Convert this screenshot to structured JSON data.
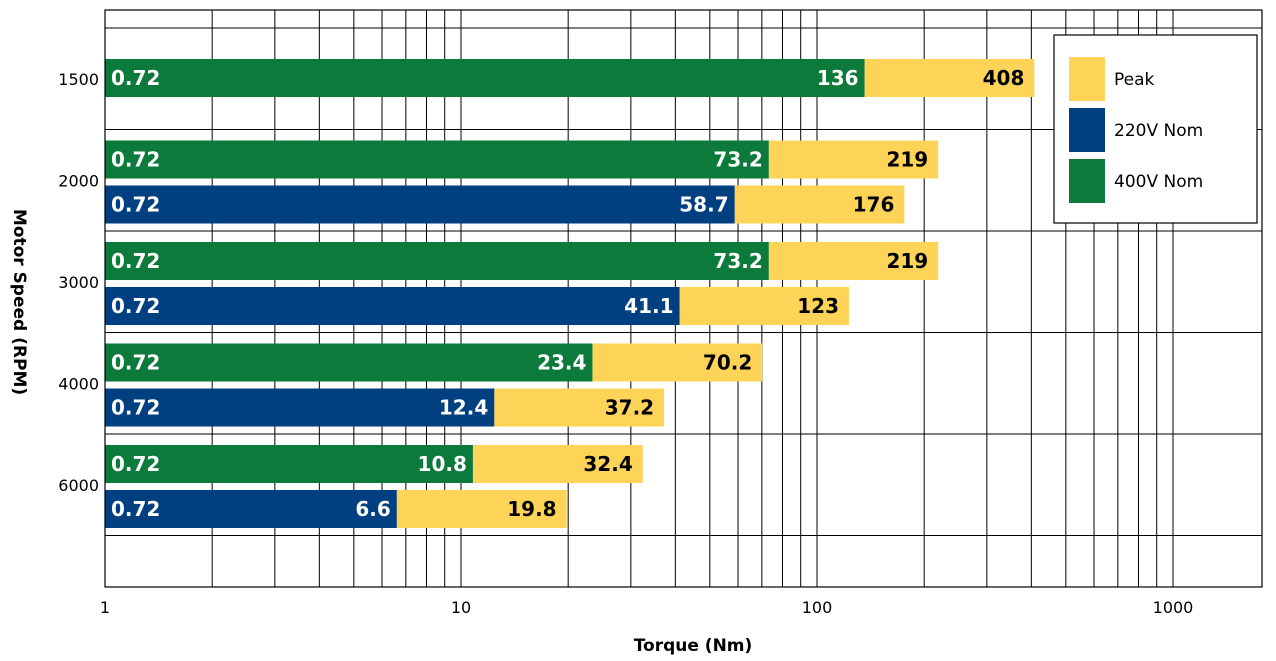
{
  "chart_data": {
    "type": "bar",
    "orientation": "horizontal",
    "x_scale": "log",
    "xlim": [
      1,
      1800
    ],
    "xlabel": "Torque (Nm)",
    "ylabel": "Motor Speed (RPM)",
    "x_ticks": [
      "1",
      "10",
      "100",
      "1000"
    ],
    "categories": [
      "1500",
      "2000",
      "3000",
      "4000",
      "6000"
    ],
    "grid": true,
    "legend_position": "top-right",
    "legend": [
      {
        "name": "Peak",
        "color": "#FDD457"
      },
      {
        "name": "220V Nom",
        "color": "#003F80"
      },
      {
        "name": "400V Nom",
        "color": "#0B7A3B"
      }
    ],
    "bars": [
      {
        "speed": "1500",
        "series": "400V Nom",
        "min": 0.72,
        "nominal": 136,
        "peak": 408
      },
      {
        "speed": "2000",
        "series": "400V Nom",
        "min": 0.72,
        "nominal": 73.2,
        "peak": 219
      },
      {
        "speed": "2000",
        "series": "220V Nom",
        "min": 0.72,
        "nominal": 58.7,
        "peak": 176
      },
      {
        "speed": "3000",
        "series": "400V Nom",
        "min": 0.72,
        "nominal": 73.2,
        "peak": 219
      },
      {
        "speed": "3000",
        "series": "220V Nom",
        "min": 0.72,
        "nominal": 41.1,
        "peak": 123
      },
      {
        "speed": "4000",
        "series": "400V Nom",
        "min": 0.72,
        "nominal": 23.4,
        "peak": 70.2
      },
      {
        "speed": "4000",
        "series": "220V Nom",
        "min": 0.72,
        "nominal": 12.4,
        "peak": 37.2
      },
      {
        "speed": "6000",
        "series": "400V Nom",
        "min": 0.72,
        "nominal": 10.8,
        "peak": 32.4
      },
      {
        "speed": "6000",
        "series": "220V Nom",
        "min": 0.72,
        "nominal": 6.6,
        "peak": 19.8
      }
    ]
  }
}
